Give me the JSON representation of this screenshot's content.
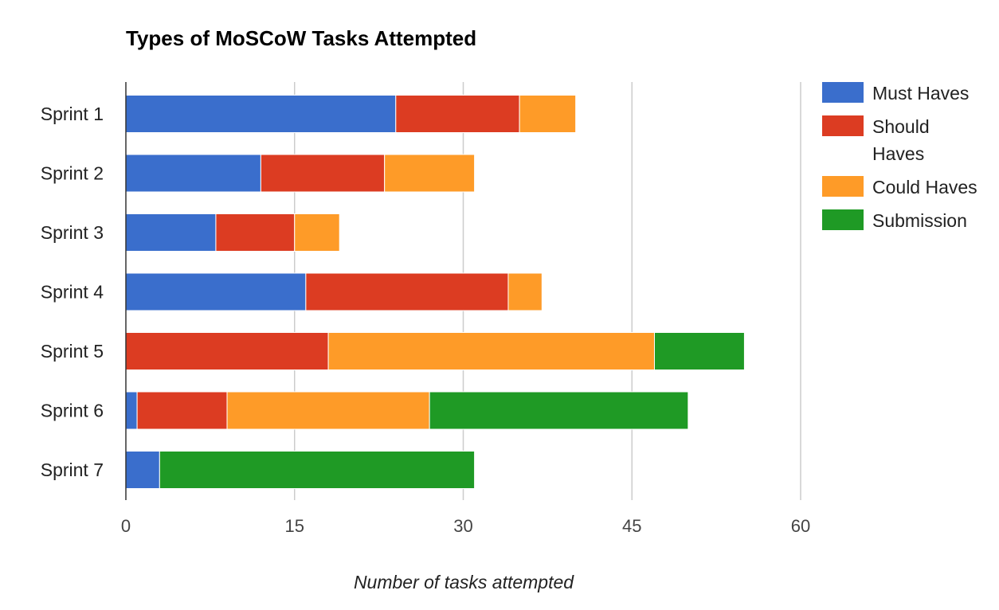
{
  "chart_data": {
    "type": "bar",
    "orientation": "horizontal",
    "stacked": true,
    "title": "Types of MoSCoW Tasks Attempted",
    "xlabel": "Number of tasks attempted",
    "ylabel": "",
    "xlim": [
      0,
      60
    ],
    "xticks": [
      0,
      15,
      30,
      45,
      60
    ],
    "grid": true,
    "legend_position": "right",
    "categories": [
      "Sprint 1",
      "Sprint 2",
      "Sprint 3",
      "Sprint 4",
      "Sprint 5",
      "Sprint 6",
      "Sprint 7"
    ],
    "series": [
      {
        "name": "Must Haves",
        "legend_lines": [
          "Must Haves"
        ],
        "color": "#3a6ecc",
        "values": [
          24,
          12,
          8,
          16,
          0,
          1,
          3
        ]
      },
      {
        "name": "Should Haves",
        "legend_lines": [
          "Should",
          "Haves"
        ],
        "color": "#dc3c22",
        "values": [
          11,
          11,
          7,
          18,
          18,
          8,
          0
        ]
      },
      {
        "name": "Could Haves",
        "legend_lines": [
          "Could Haves"
        ],
        "color": "#fe9b28",
        "values": [
          5,
          8,
          4,
          3,
          29,
          18,
          0
        ]
      },
      {
        "name": "Submission",
        "legend_lines": [
          "Submission"
        ],
        "color": "#1f9a25",
        "values": [
          0,
          0,
          0,
          0,
          8,
          23,
          28
        ]
      }
    ]
  }
}
